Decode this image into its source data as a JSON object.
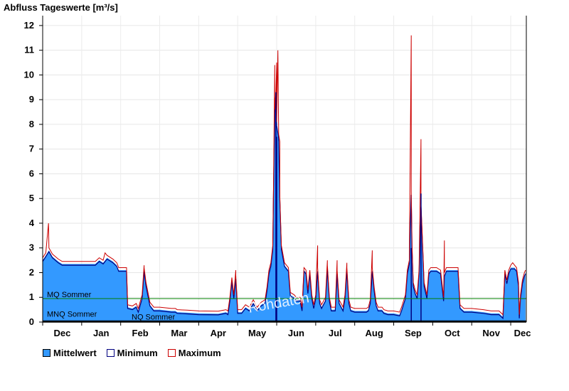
{
  "chart_data": {
    "type": "area",
    "title": "Abfluss Tageswerte [m³/s]",
    "ylim": [
      0,
      12.4
    ],
    "y_ticks": [
      "0",
      "1",
      "2",
      "3",
      "4",
      "5",
      "6",
      "7",
      "8",
      "9",
      "10",
      "11",
      "12"
    ],
    "month_labels": [
      "Dec",
      "Jan",
      "Feb",
      "Mar",
      "Apr",
      "May",
      "Jun",
      "Jul",
      "Aug",
      "Sep",
      "Oct",
      "Nov",
      "Dec"
    ],
    "month_label_pos": [
      0.5,
      1.5,
      2.5,
      3.5,
      4.5,
      5.5,
      6.5,
      7.5,
      8.5,
      9.5,
      10.5,
      11.5,
      12.3
    ],
    "grid": true,
    "reference_lines": [
      {
        "label": "MQ Sommer",
        "value": 0.95,
        "color": "#008000"
      },
      {
        "label": "MNQ Sommer",
        "value": 0.05,
        "color": "#000000"
      },
      {
        "label": "NQ Sommer",
        "value": 0.02,
        "color": "#000000"
      }
    ],
    "watermark": "Rohdaten",
    "series_points": [
      [
        0.0,
        2.5
      ],
      [
        0.08,
        2.7
      ],
      [
        0.16,
        2.9
      ],
      [
        0.25,
        2.65
      ],
      [
        0.4,
        2.45
      ],
      [
        0.5,
        2.35
      ],
      [
        1.0,
        2.35
      ],
      [
        1.2,
        2.35
      ],
      [
        1.35,
        2.35
      ],
      [
        1.45,
        2.5
      ],
      [
        1.55,
        2.4
      ],
      [
        1.65,
        2.6
      ],
      [
        1.8,
        2.45
      ],
      [
        1.9,
        2.3
      ],
      [
        1.95,
        2.1
      ],
      [
        2.15,
        2.1
      ],
      [
        2.18,
        0.6
      ],
      [
        2.3,
        0.55
      ],
      [
        2.4,
        0.65
      ],
      [
        2.45,
        0.45
      ],
      [
        2.55,
        1.0
      ],
      [
        2.6,
        2.1
      ],
      [
        2.65,
        1.5
      ],
      [
        2.75,
        0.7
      ],
      [
        2.85,
        0.5
      ],
      [
        3.0,
        0.5
      ],
      [
        3.3,
        0.45
      ],
      [
        3.4,
        0.45
      ],
      [
        3.45,
        0.4
      ],
      [
        3.7,
        0.38
      ],
      [
        4.0,
        0.35
      ],
      [
        4.5,
        0.34
      ],
      [
        4.7,
        0.4
      ],
      [
        4.75,
        0.35
      ],
      [
        4.8,
        0.9
      ],
      [
        4.85,
        1.7
      ],
      [
        4.9,
        1.0
      ],
      [
        4.95,
        1.8
      ],
      [
        5.0,
        0.4
      ],
      [
        5.1,
        0.4
      ],
      [
        5.2,
        0.6
      ],
      [
        5.3,
        0.5
      ],
      [
        5.4,
        0.8
      ],
      [
        5.5,
        0.5
      ],
      [
        5.6,
        0.7
      ],
      [
        5.7,
        0.8
      ],
      [
        5.75,
        1.3
      ],
      [
        5.8,
        2.0
      ],
      [
        5.85,
        2.3
      ],
      [
        5.9,
        3.0
      ],
      [
        5.92,
        5.5
      ],
      [
        5.95,
        8.5
      ],
      [
        5.98,
        9.2
      ],
      [
        6.0,
        8.0
      ],
      [
        6.05,
        7.5
      ],
      [
        6.08,
        5.0
      ],
      [
        6.12,
        3.0
      ],
      [
        6.2,
        2.3
      ],
      [
        6.3,
        2.1
      ],
      [
        6.35,
        1.1
      ],
      [
        6.45,
        1.0
      ],
      [
        6.5,
        0.9
      ],
      [
        6.6,
        0.9
      ],
      [
        6.65,
        0.5
      ],
      [
        6.7,
        2.1
      ],
      [
        6.75,
        2.0
      ],
      [
        6.8,
        1.2
      ],
      [
        6.85,
        2.0
      ],
      [
        6.9,
        1.0
      ],
      [
        6.95,
        0.6
      ],
      [
        7.0,
        1.0
      ],
      [
        7.05,
        2.1
      ],
      [
        7.1,
        0.8
      ],
      [
        7.15,
        0.6
      ],
      [
        7.25,
        0.9
      ],
      [
        7.3,
        2.2
      ],
      [
        7.35,
        0.9
      ],
      [
        7.4,
        0.5
      ],
      [
        7.5,
        0.5
      ],
      [
        7.55,
        2.0
      ],
      [
        7.6,
        0.8
      ],
      [
        7.7,
        0.5
      ],
      [
        7.75,
        1.0
      ],
      [
        7.8,
        2.1
      ],
      [
        7.85,
        0.8
      ],
      [
        7.9,
        0.5
      ],
      [
        8.0,
        0.45
      ],
      [
        8.3,
        0.45
      ],
      [
        8.35,
        0.5
      ],
      [
        8.4,
        0.8
      ],
      [
        8.45,
        2.1
      ],
      [
        8.5,
        1.3
      ],
      [
        8.55,
        0.7
      ],
      [
        8.6,
        0.5
      ],
      [
        8.7,
        0.5
      ],
      [
        8.75,
        0.4
      ],
      [
        8.85,
        0.35
      ],
      [
        9.0,
        0.35
      ],
      [
        9.15,
        0.3
      ],
      [
        9.2,
        0.5
      ],
      [
        9.3,
        1.0
      ],
      [
        9.35,
        2.0
      ],
      [
        9.4,
        2.4
      ],
      [
        9.45,
        5.2
      ],
      [
        9.47,
        3.0
      ],
      [
        9.5,
        1.5
      ],
      [
        9.55,
        1.2
      ],
      [
        9.6,
        1.0
      ],
      [
        9.65,
        2.0
      ],
      [
        9.7,
        4.7
      ],
      [
        9.73,
        3.5
      ],
      [
        9.78,
        1.5
      ],
      [
        9.85,
        1.0
      ],
      [
        9.9,
        2.0
      ],
      [
        9.95,
        2.1
      ],
      [
        10.1,
        2.1
      ],
      [
        10.2,
        2.0
      ],
      [
        10.28,
        0.9
      ],
      [
        10.3,
        1.9
      ],
      [
        10.35,
        2.1
      ],
      [
        10.65,
        2.1
      ],
      [
        10.7,
        0.6
      ],
      [
        10.8,
        0.45
      ],
      [
        11.0,
        0.45
      ],
      [
        11.3,
        0.4
      ],
      [
        11.5,
        0.35
      ],
      [
        11.7,
        0.35
      ],
      [
        11.8,
        0.2
      ],
      [
        11.85,
        2.0
      ],
      [
        11.9,
        1.6
      ],
      [
        11.95,
        2.0
      ],
      [
        12.0,
        2.2
      ],
      [
        12.1,
        2.2
      ],
      [
        12.15,
        2.1
      ],
      [
        12.2,
        1.5
      ],
      [
        12.22,
        0.2
      ],
      [
        12.25,
        1.0
      ],
      [
        12.3,
        1.6
      ],
      [
        12.35,
        1.9
      ],
      [
        12.38,
        2.0
      ]
    ],
    "max_peaks": [
      [
        0.15,
        4.0
      ],
      [
        1.6,
        2.8
      ],
      [
        2.6,
        2.3
      ],
      [
        4.95,
        2.1
      ],
      [
        5.95,
        10.4
      ],
      [
        6.0,
        10.5
      ],
      [
        6.03,
        11.0
      ],
      [
        6.08,
        7.3
      ],
      [
        7.05,
        3.1
      ],
      [
        7.3,
        2.5
      ],
      [
        7.55,
        2.5
      ],
      [
        7.8,
        2.4
      ],
      [
        8.45,
        2.9
      ],
      [
        9.45,
        11.6
      ],
      [
        9.7,
        7.4
      ],
      [
        10.3,
        3.3
      ],
      [
        12.05,
        2.4
      ]
    ],
    "min_dips": [
      [
        5.98,
        9.3
      ],
      [
        6.0,
        7.5
      ],
      [
        9.45,
        3.0
      ],
      [
        9.7,
        5.2
      ]
    ],
    "legend": [
      {
        "label": "Mittelwert",
        "fill": "#3399FF",
        "border": "#000000"
      },
      {
        "label": "Minimum",
        "fill": "#FFFFFF",
        "border": "#000080"
      },
      {
        "label": "Maximum",
        "fill": "#FFFFFF",
        "border": "#CC0000"
      }
    ]
  }
}
